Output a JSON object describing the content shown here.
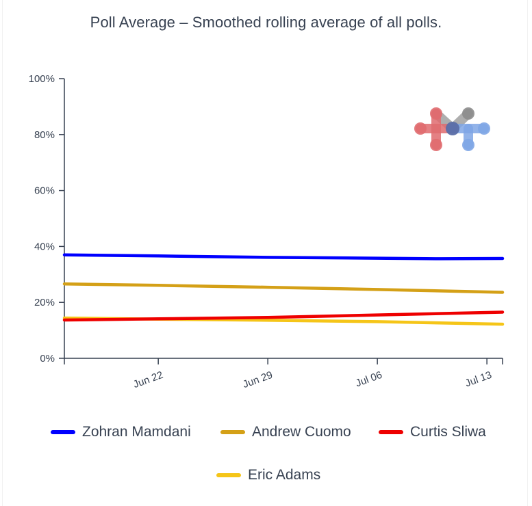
{
  "chart_data": {
    "type": "line",
    "title": "Poll Average – Smoothed rolling average of all polls.",
    "xlabel": "",
    "ylabel": "",
    "ylim": [
      0,
      100
    ],
    "y_ticks": [
      0,
      20,
      40,
      60,
      80,
      100
    ],
    "y_tick_labels": [
      "0%",
      "20%",
      "40%",
      "60%",
      "80%",
      "100%"
    ],
    "xlim": [
      "2025-06-16",
      "2025-07-14"
    ],
    "x_ticks": [
      "2025-06-22",
      "2025-06-29",
      "2025-07-06",
      "2025-07-13"
    ],
    "x_tick_labels": [
      "Jun 22",
      "Jun 29",
      "Jul 06",
      "Jul 13"
    ],
    "grid": false,
    "legend_position": "bottom",
    "series": [
      {
        "name": "Zohran Mamdani",
        "color": "#0000ff",
        "x": [
          "2025-06-16",
          "2025-06-22",
          "2025-06-29",
          "2025-07-06",
          "2025-07-10",
          "2025-07-14"
        ],
        "values": [
          37.0,
          36.6,
          36.1,
          35.8,
          35.6,
          35.7
        ]
      },
      {
        "name": "Andrew Cuomo",
        "color": "#d4a017",
        "x": [
          "2025-06-16",
          "2025-06-22",
          "2025-06-29",
          "2025-07-06",
          "2025-07-14"
        ],
        "values": [
          26.6,
          26.1,
          25.4,
          24.6,
          23.6
        ]
      },
      {
        "name": "Curtis Sliwa",
        "color": "#ee0000",
        "x": [
          "2025-06-16",
          "2025-06-22",
          "2025-06-29",
          "2025-07-06",
          "2025-07-14"
        ],
        "values": [
          13.7,
          14.1,
          14.6,
          15.5,
          16.5
        ]
      },
      {
        "name": "Eric Adams",
        "color": "#f5c518",
        "x": [
          "2025-06-16",
          "2025-06-22",
          "2025-06-29",
          "2025-07-06",
          "2025-07-14"
        ],
        "values": [
          14.4,
          14.0,
          13.6,
          13.1,
          12.2
        ]
      }
    ]
  },
  "logo": {
    "icon": "network-nodes-logo-icon",
    "colors": [
      "#e06c6f",
      "#8c8c8c",
      "#7fa6e6",
      "#5b6ea8"
    ]
  }
}
